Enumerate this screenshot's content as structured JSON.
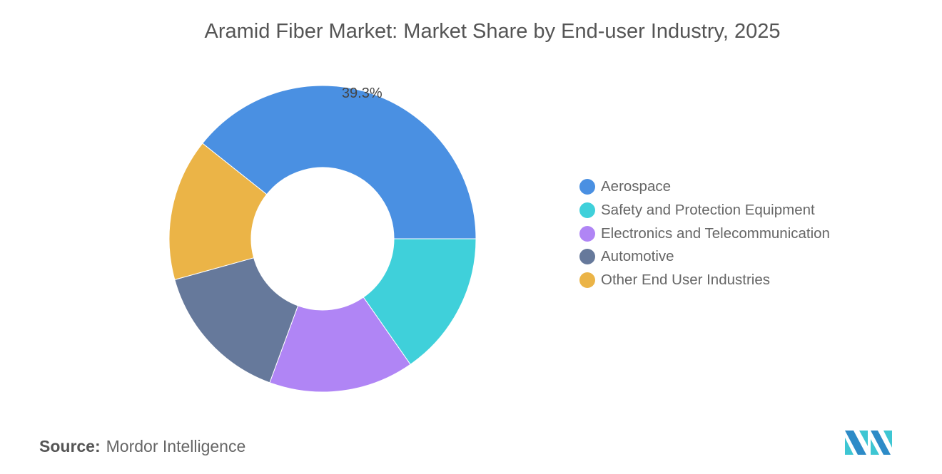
{
  "chart_data": {
    "type": "pie",
    "title": "Aramid Fiber Market: Market Share by End-user Industry, 2025",
    "categories": [
      "Aerospace",
      "Safety and Protection Equipment",
      "Electronics and Telecommunication",
      "Automotive",
      "Other End User Industries"
    ],
    "values": [
      39.3,
      15.3,
      15.3,
      15.1,
      15.0
    ],
    "colors": [
      "#4a90e2",
      "#3fd0da",
      "#b085f5",
      "#66799b",
      "#ebb447"
    ],
    "data_labels": [
      "39.3%",
      "",
      "",
      "",
      ""
    ],
    "donut": true,
    "legend_position": "right"
  },
  "source": {
    "label": "Source:",
    "value": "Mordor Intelligence"
  }
}
